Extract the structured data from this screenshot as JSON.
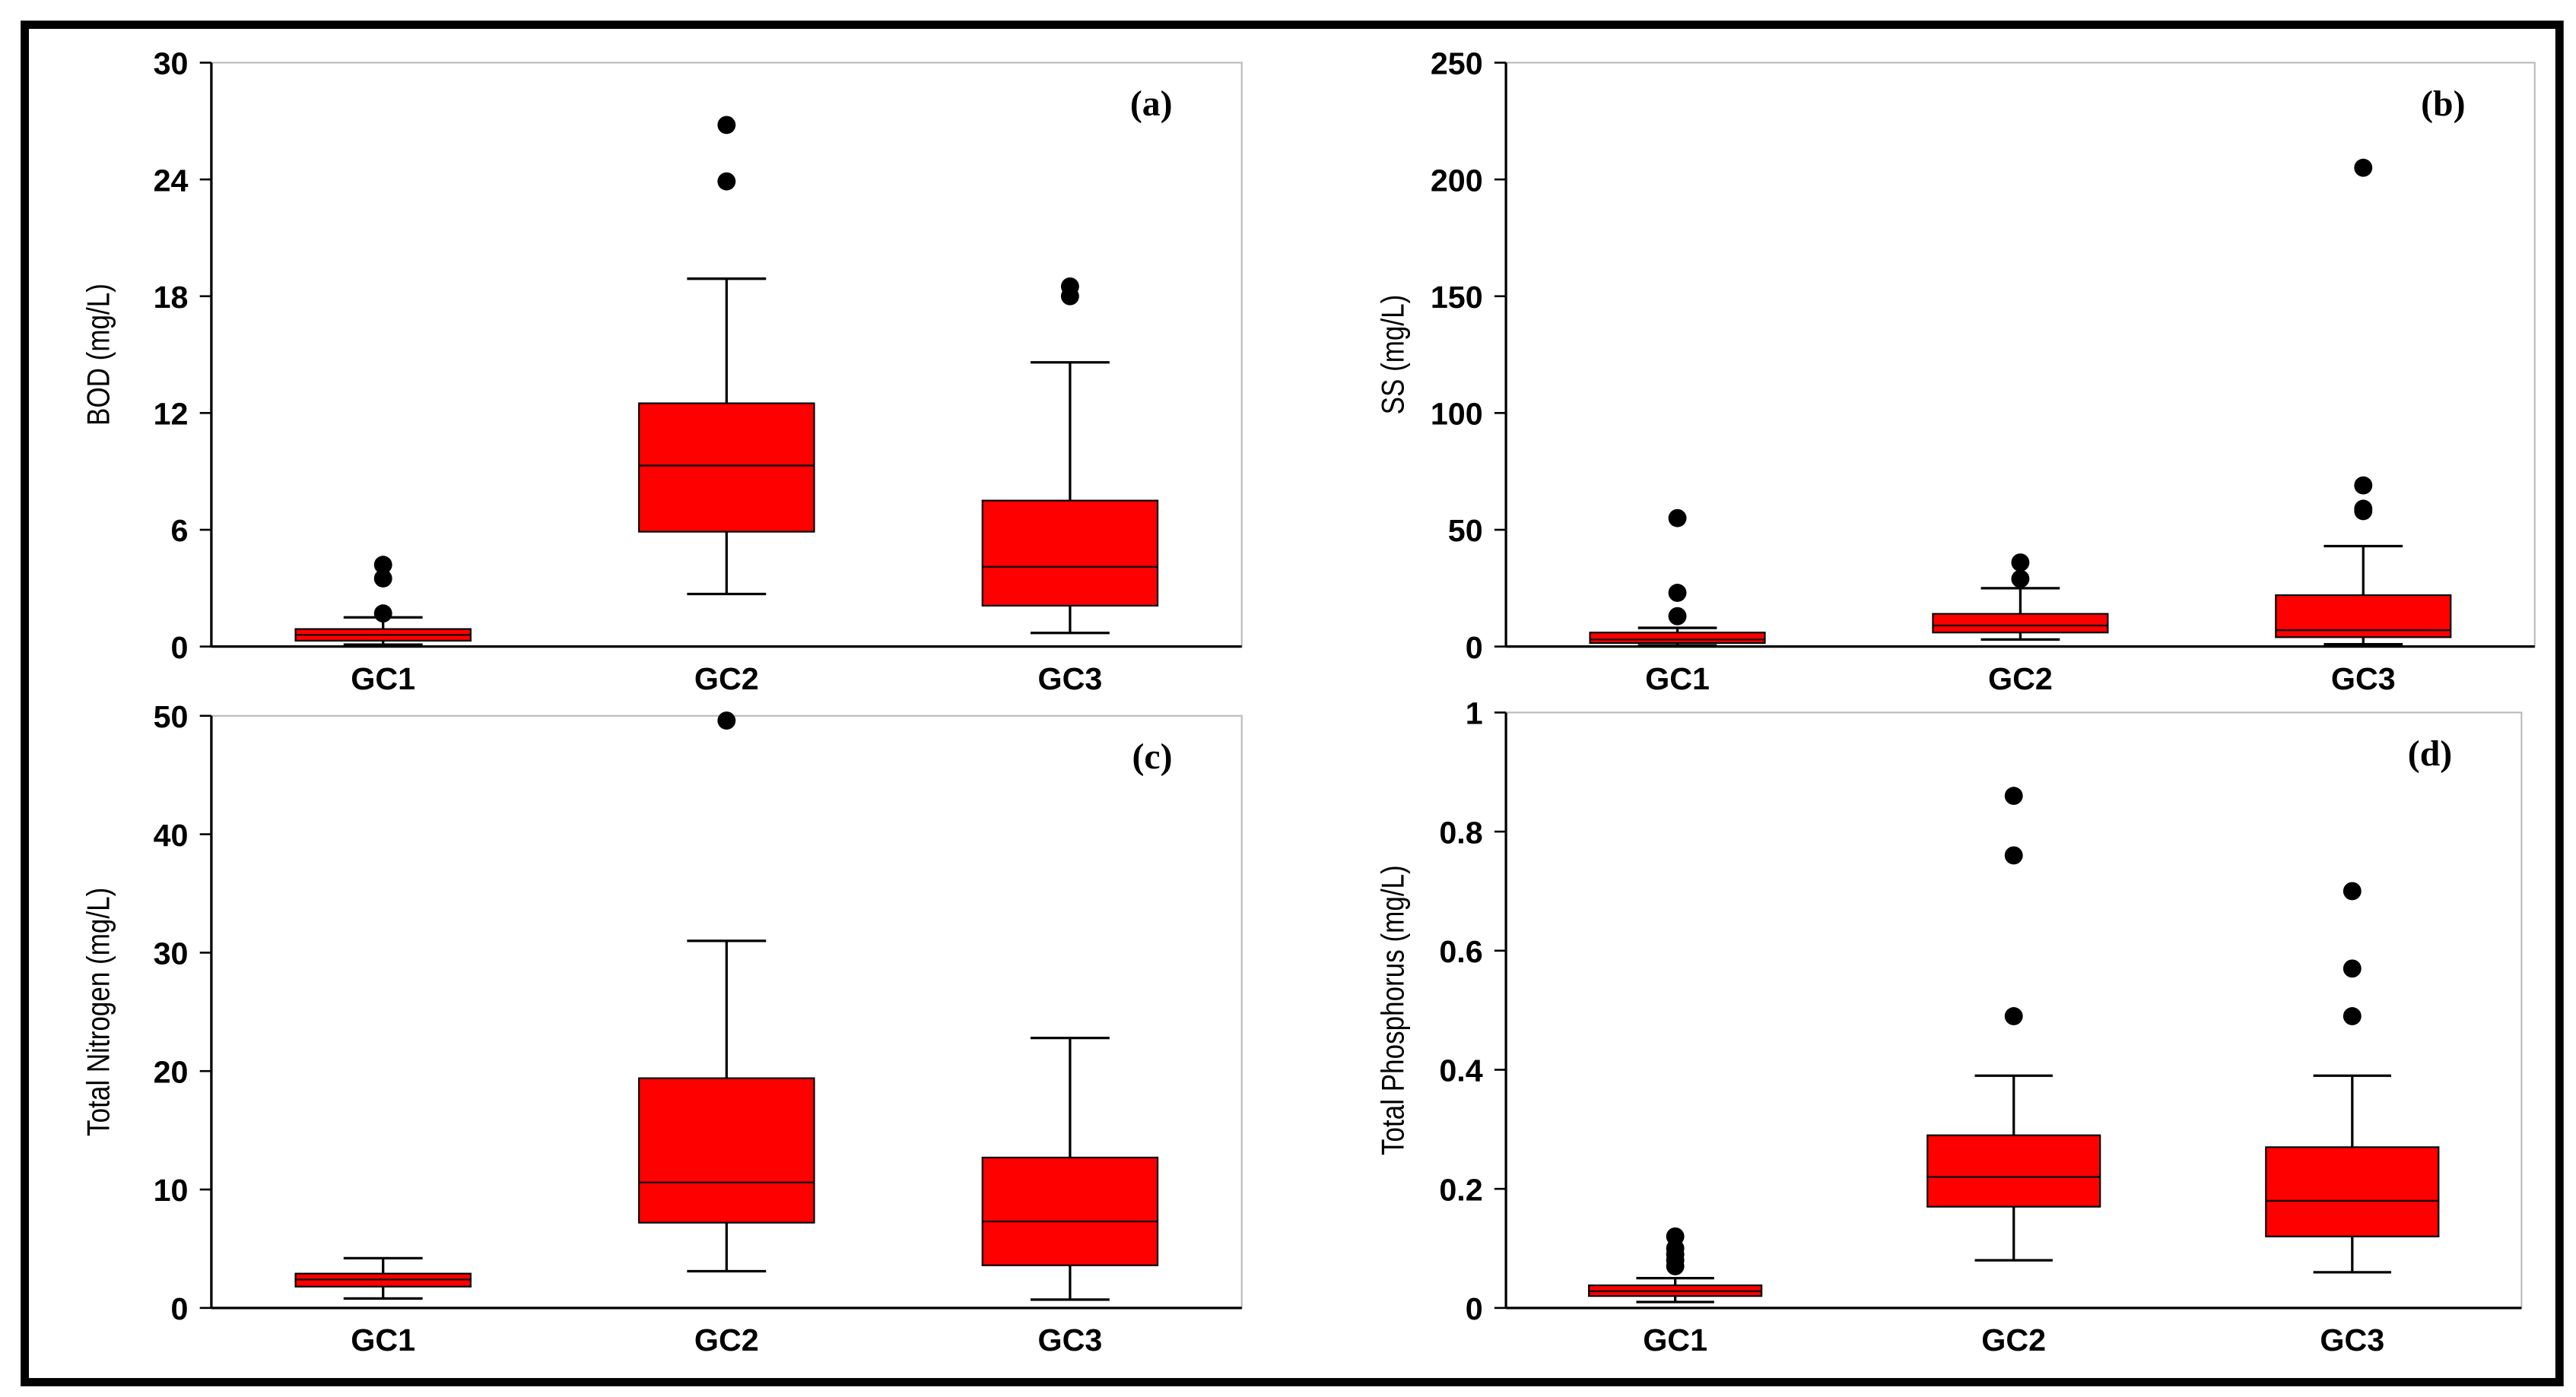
{
  "chart_data": [
    {
      "type": "box",
      "ylabel": "BOD (mg/L)",
      "panel_label": "(a)",
      "color": "#ff0000",
      "categories": [
        "GC1",
        "GC2",
        "GC3"
      ],
      "ylim": [
        0,
        30
      ],
      "yticks": [
        0,
        6,
        12,
        18,
        24,
        30
      ],
      "boxes": [
        {
          "min": 0.1,
          "q1": 0.3,
          "median": 0.6,
          "q3": 0.9,
          "max": 1.5,
          "outliers": [
            1.7,
            3.5,
            4.2
          ]
        },
        {
          "min": 2.7,
          "q1": 5.9,
          "median": 9.3,
          "q3": 12.5,
          "max": 18.9,
          "outliers": [
            23.9,
            26.8
          ]
        },
        {
          "min": 0.7,
          "q1": 2.1,
          "median": 4.1,
          "q3": 7.5,
          "max": 14.6,
          "outliers": [
            18.0,
            18.5
          ]
        }
      ]
    },
    {
      "type": "box",
      "ylabel": "SS (mg/L)",
      "panel_label": "(b)",
      "color": "#ff0000",
      "categories": [
        "GC1",
        "GC2",
        "GC3"
      ],
      "ylim": [
        0,
        250
      ],
      "yticks": [
        0,
        50,
        100,
        150,
        200,
        250
      ],
      "boxes": [
        {
          "min": 0.5,
          "q1": 1.5,
          "median": 3,
          "q3": 6,
          "max": 8,
          "outliers": [
            13,
            23,
            55
          ]
        },
        {
          "min": 3,
          "q1": 6,
          "median": 9,
          "q3": 14,
          "max": 25,
          "outliers": [
            29,
            36
          ]
        },
        {
          "min": 1,
          "q1": 4,
          "median": 7,
          "q3": 22,
          "max": 43,
          "outliers": [
            58,
            59,
            69,
            205
          ]
        }
      ]
    },
    {
      "type": "box",
      "ylabel": "Total Nitrogen (mg/L)",
      "panel_label": "(c)",
      "color": "#ff0000",
      "categories": [
        "GC1",
        "GC2",
        "GC3"
      ],
      "ylim": [
        0,
        50
      ],
      "yticks": [
        0,
        10,
        20,
        30,
        40,
        50
      ],
      "boxes": [
        {
          "min": 0.8,
          "q1": 1.8,
          "median": 2.4,
          "q3": 2.9,
          "max": 4.2,
          "outliers": []
        },
        {
          "min": 3.1,
          "q1": 7.2,
          "median": 10.6,
          "q3": 19.4,
          "max": 31.0,
          "outliers": [
            49.6
          ]
        },
        {
          "min": 0.7,
          "q1": 3.6,
          "median": 7.3,
          "q3": 12.7,
          "max": 22.8,
          "outliers": []
        }
      ]
    },
    {
      "type": "box",
      "ylabel": "Total Phosphorus (mg/L)",
      "panel_label": "(d)",
      "color": "#ff0000",
      "categories": [
        "GC1",
        "GC2",
        "GC3"
      ],
      "ylim": [
        0,
        1
      ],
      "yticks": [
        0,
        0.2,
        0.4,
        0.6,
        0.8,
        1
      ],
      "boxes": [
        {
          "min": 0.01,
          "q1": 0.02,
          "median": 0.028,
          "q3": 0.038,
          "max": 0.05,
          "outliers": [
            0.07,
            0.08,
            0.09,
            0.1,
            0.12
          ]
        },
        {
          "min": 0.08,
          "q1": 0.17,
          "median": 0.22,
          "q3": 0.29,
          "max": 0.39,
          "outliers": [
            0.49,
            0.76,
            0.86
          ]
        },
        {
          "min": 0.06,
          "q1": 0.12,
          "median": 0.18,
          "q3": 0.27,
          "max": 0.39,
          "outliers": [
            0.49,
            0.57,
            0.7
          ]
        }
      ]
    }
  ]
}
